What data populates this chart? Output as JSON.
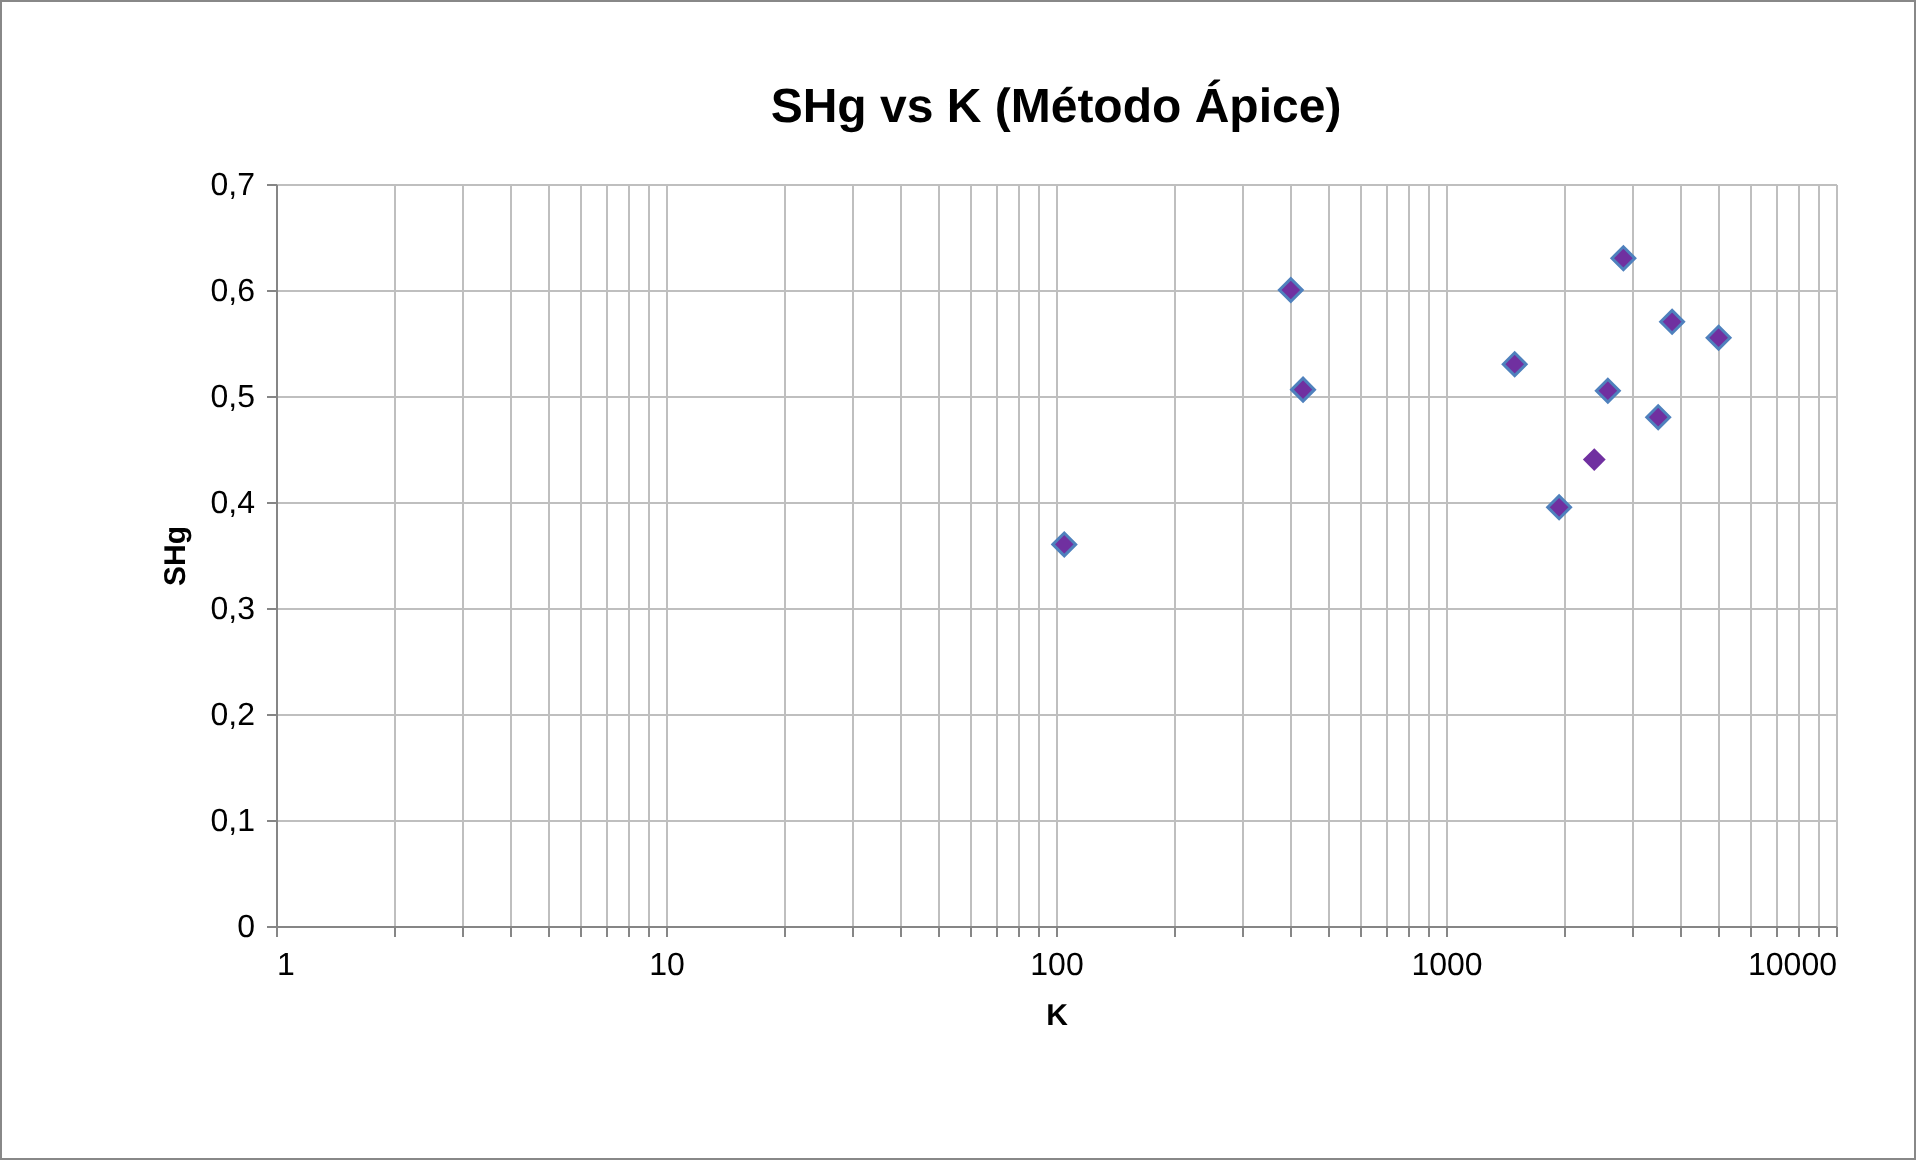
{
  "chart_data": {
    "type": "scatter",
    "title": "SHg vs K (Método Ápice)",
    "xlabel": "K",
    "ylabel": "SHg",
    "log": "x",
    "grid": true,
    "marker": "diamond",
    "xlim": [
      1,
      10000
    ],
    "ylim": [
      0,
      0.7
    ],
    "xticks": [
      1,
      {
        "value": 2,
        "label": null
      },
      {
        "value": 3,
        "label": null
      },
      {
        "value": 4,
        "label": null
      },
      {
        "value": 5,
        "label": null
      },
      {
        "value": 6,
        "label": null
      },
      {
        "value": 7,
        "label": null
      },
      {
        "value": 8,
        "label": null
      },
      {
        "value": 9,
        "label": null
      },
      10,
      {
        "value": 20,
        "label": null
      },
      {
        "value": 30,
        "label": null
      },
      {
        "value": 40,
        "label": null
      },
      {
        "value": 50,
        "label": null
      },
      {
        "value": 60,
        "label": null
      },
      {
        "value": 70,
        "label": null
      },
      {
        "value": 80,
        "label": null
      },
      {
        "value": 90,
        "label": null
      },
      100,
      {
        "value": 200,
        "label": null
      },
      {
        "value": 300,
        "label": null
      },
      {
        "value": 400,
        "label": null
      },
      {
        "value": 500,
        "label": null
      },
      {
        "value": 600,
        "label": null
      },
      {
        "value": 700,
        "label": null
      },
      {
        "value": 800,
        "label": null
      },
      {
        "value": 900,
        "label": null
      },
      1000,
      {
        "value": 2000,
        "label": null
      },
      {
        "value": 3000,
        "label": null
      },
      {
        "value": 4000,
        "label": null
      },
      {
        "value": 5000,
        "label": null
      },
      {
        "value": 6000,
        "label": null
      },
      {
        "value": 7000,
        "label": null
      },
      {
        "value": 8000,
        "label": null
      },
      {
        "value": 9000,
        "label": null
      },
      10000
    ],
    "yticks": [
      0,
      {
        "value": 0.1,
        "label": "0,1"
      },
      {
        "value": 0.2,
        "label": "0,2"
      },
      {
        "value": 0.3,
        "label": "0,3"
      },
      {
        "value": 0.4,
        "label": "0,4"
      },
      {
        "value": 0.5,
        "label": "0,5"
      },
      {
        "value": 0.6,
        "label": "0,6"
      },
      {
        "value": 0.7,
        "label": "0,7"
      }
    ],
    "series": [
      {
        "color": "#7030a0",
        "x": [
          105,
          400,
          430,
          1500,
          1950,
          2600,
          2850,
          3800,
          3500,
          5000
        ],
        "values": [
          0.36,
          0.6,
          0.506,
          0.53,
          0.395,
          0.505,
          0.63,
          0.57,
          0.48,
          0.555
        ]
      },
      {
        "color": "#7030a0",
        "x": [
          2400
        ],
        "values": [
          0.44
        ]
      }
    ]
  }
}
